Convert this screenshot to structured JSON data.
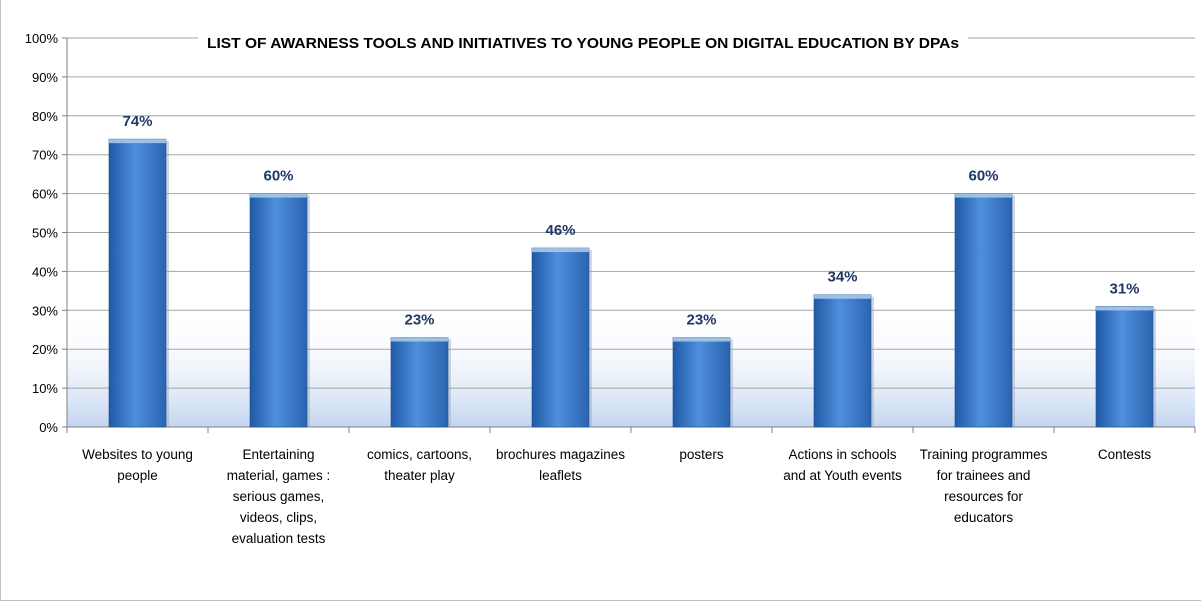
{
  "chart_data": {
    "type": "bar",
    "title": "LIST OF AWARNESS TOOLS AND INITIATIVES TO YOUNG PEOPLE ON DIGITAL EDUCATION BY DPAs",
    "categories": [
      [
        "Websites to young",
        "people"
      ],
      [
        "Entertaining",
        "material, games :",
        "serious games,",
        "videos, clips,",
        "evaluation tests"
      ],
      [
        "comics, cartoons,",
        "theater play"
      ],
      [
        "brochures magazines",
        "leaflets"
      ],
      [
        "posters"
      ],
      [
        "Actions in schools",
        "and at Youth events"
      ],
      [
        "Training programmes",
        "for trainees and",
        "resources for",
        "educators"
      ],
      [
        "Contests"
      ]
    ],
    "values": [
      74,
      60,
      23,
      46,
      23,
      34,
      60,
      31
    ],
    "value_labels": [
      "74%",
      "60%",
      "23%",
      "46%",
      "23%",
      "34%",
      "60%",
      "31%"
    ],
    "ylim": [
      0,
      100
    ],
    "yticks": [
      "0%",
      "10%",
      "20%",
      "30%",
      "40%",
      "50%",
      "60%",
      "70%",
      "80%",
      "90%",
      "100%"
    ],
    "xlabel": "",
    "ylabel": "",
    "grid": true,
    "legend": "none",
    "colors": {
      "bar_light": "#5b9bd5",
      "bar_dark": "#2e6bb5",
      "bar_top": "#a9c8ea",
      "grid": "#a6a6a6",
      "data_label": "#1f3864",
      "plot_band": "#c9d8f0"
    }
  }
}
